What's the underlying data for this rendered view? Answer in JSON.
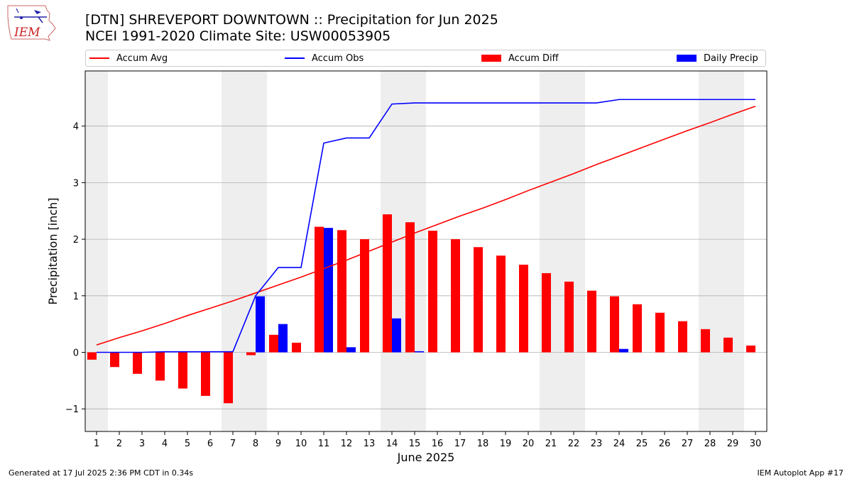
{
  "header": {
    "title_line1": "[DTN] SHREVEPORT DOWNTOWN :: Precipitation for Jun 2025",
    "title_line2": "NCEI 1991-2020 Climate Site: USW00053905"
  },
  "logo": {
    "text": "IEM"
  },
  "footer": {
    "left": "Generated at 17 Jul 2025 2:36 PM CDT in 0.34s",
    "right": "IEM Autoplot App #17"
  },
  "legend": {
    "accum_avg": "Accum Avg",
    "accum_obs": "Accum Obs",
    "accum_diff": "Accum Diff",
    "daily_precip": "Daily Precip"
  },
  "colors": {
    "accum_avg": "#ff0000",
    "accum_obs": "#0000ff",
    "accum_diff": "#ff0000",
    "daily_precip": "#0000ff",
    "weekend_shade": "#eeeeee",
    "grid": "#b0b0b0"
  },
  "chart_data": {
    "type": "bar",
    "xlabel": "June 2025",
    "ylabel": "Precipitation [inch]",
    "x": [
      1,
      2,
      3,
      4,
      5,
      6,
      7,
      8,
      9,
      10,
      11,
      12,
      13,
      14,
      15,
      16,
      17,
      18,
      19,
      20,
      21,
      22,
      23,
      24,
      25,
      26,
      27,
      28,
      29,
      30
    ],
    "x_ticks": [
      "1",
      "2",
      "3",
      "4",
      "5",
      "6",
      "7",
      "8",
      "9",
      "10",
      "11",
      "12",
      "13",
      "14",
      "15",
      "16",
      "17",
      "18",
      "19",
      "20",
      "21",
      "22",
      "23",
      "24",
      "25",
      "26",
      "27",
      "28",
      "29",
      "30"
    ],
    "y_ticks": [
      "−1",
      "0",
      "1",
      "2",
      "3",
      "4"
    ],
    "ylim": [
      -1.4,
      4.97
    ],
    "grid": "horizontal",
    "legend_position": "top",
    "shaded_days": [
      1,
      7,
      8,
      14,
      15,
      21,
      22,
      28,
      29
    ],
    "series": [
      {
        "name": "Accum Avg",
        "type": "line",
        "values": [
          0.13,
          0.26,
          0.38,
          0.51,
          0.65,
          0.78,
          0.91,
          1.05,
          1.19,
          1.33,
          1.48,
          1.63,
          1.79,
          1.95,
          2.11,
          2.26,
          2.41,
          2.55,
          2.7,
          2.86,
          3.01,
          3.16,
          3.32,
          3.47,
          3.62,
          3.77,
          3.92,
          4.06,
          4.21,
          4.35
        ]
      },
      {
        "name": "Accum Obs",
        "type": "line",
        "values": [
          0,
          0,
          0,
          0.01,
          0.01,
          0.01,
          0.01,
          1.0,
          1.5,
          1.5,
          3.7,
          3.79,
          3.79,
          4.39,
          4.41,
          4.41,
          4.41,
          4.41,
          4.41,
          4.41,
          4.41,
          4.41,
          4.41,
          4.47,
          4.47,
          4.47,
          4.47,
          4.47,
          4.47,
          4.47
        ]
      },
      {
        "name": "Accum Diff",
        "type": "bar",
        "values": [
          -0.13,
          -0.26,
          -0.38,
          -0.5,
          -0.64,
          -0.77,
          -0.9,
          -0.05,
          0.31,
          0.17,
          2.22,
          2.16,
          2.0,
          2.44,
          2.3,
          2.15,
          2.0,
          1.86,
          1.71,
          1.55,
          1.4,
          1.25,
          1.09,
          0.99,
          0.85,
          0.7,
          0.55,
          0.41,
          0.26,
          0.12
        ]
      },
      {
        "name": "Daily Precip",
        "type": "bar",
        "values": [
          0,
          0,
          0,
          0.01,
          0,
          0,
          0,
          0.99,
          0.5,
          0,
          2.2,
          0.09,
          0,
          0.6,
          0.02,
          0,
          0,
          0,
          0,
          0,
          0,
          0,
          0,
          0.06,
          0,
          0,
          0,
          0,
          0,
          0
        ]
      }
    ]
  }
}
